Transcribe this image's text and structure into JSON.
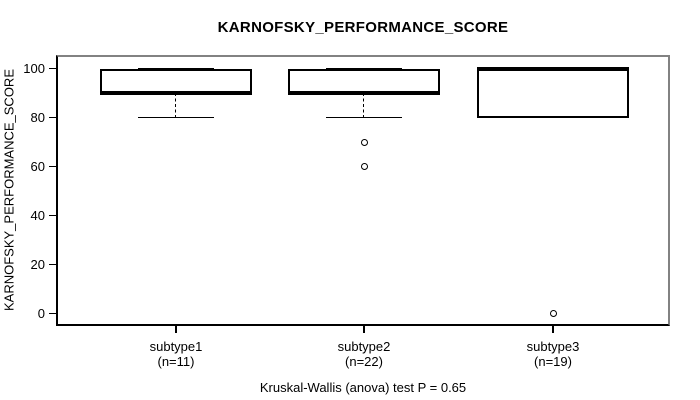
{
  "chart_data": {
    "type": "boxplot",
    "title": "KARNOFSKY_PERFORMANCE_SCORE",
    "ylabel": "KARNOFSKY_PERFORMANCE_SCORE",
    "footnote": "Kruskal-Wallis (anova) test P = 0.65",
    "ylim": [
      0,
      100
    ],
    "yticks": [
      0,
      20,
      40,
      60,
      80,
      100
    ],
    "grid": false,
    "legend": "none",
    "colors": {
      "box_border": "#000000",
      "box_fill": "#ffffff",
      "median": "#000000",
      "plot_border_top_right": "#828282",
      "axis": "#000000",
      "text": "#000000",
      "background": "#ffffff"
    },
    "groups": [
      {
        "label": "subtype1",
        "n_label": "(n=11)",
        "n": 11,
        "q1": 90,
        "median": 90,
        "q3": 100,
        "whisker_low": 80,
        "whisker_high": 100,
        "outliers": []
      },
      {
        "label": "subtype2",
        "n_label": "(n=22)",
        "n": 22,
        "q1": 90,
        "median": 90,
        "q3": 100,
        "whisker_low": 80,
        "whisker_high": 100,
        "outliers": [
          70,
          60
        ]
      },
      {
        "label": "subtype3",
        "n_label": "(n=19)",
        "n": 19,
        "q1": 80,
        "median": 100,
        "q3": 100,
        "whisker_low": 80,
        "whisker_high": 100,
        "outliers": [
          0
        ]
      }
    ]
  }
}
